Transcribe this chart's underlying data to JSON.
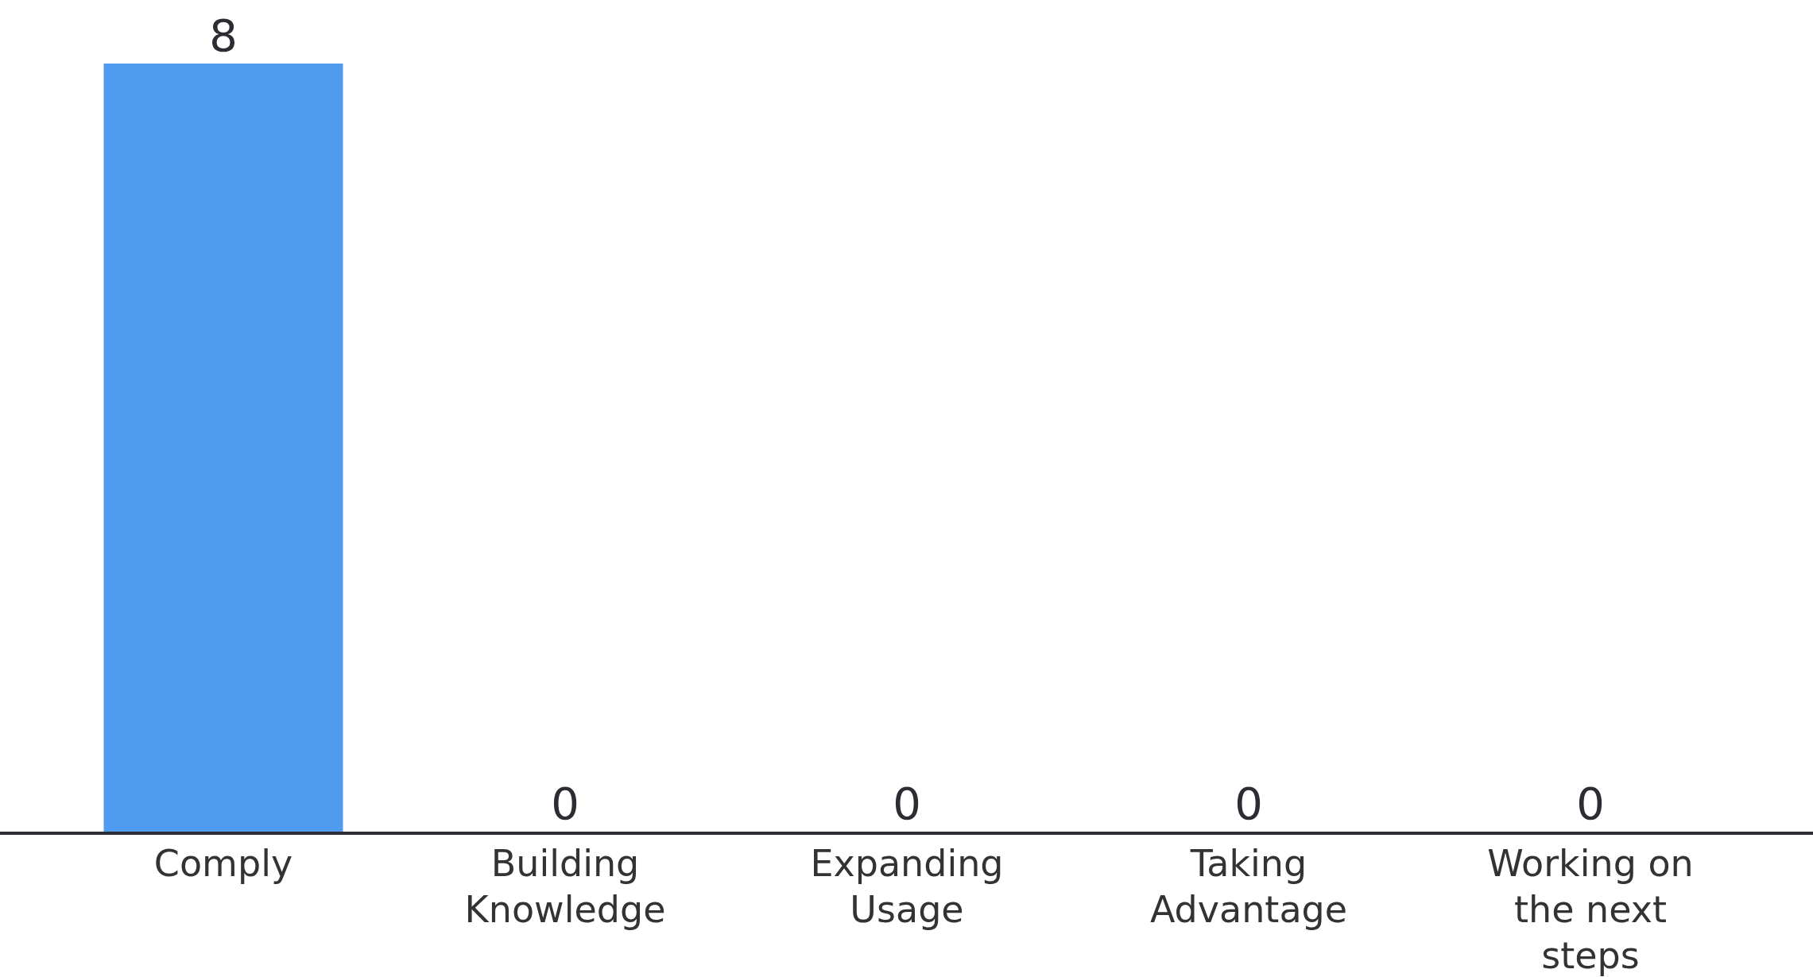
{
  "chart_data": {
    "type": "bar",
    "categories": [
      "Comply",
      "Building Knowledge",
      "Expanding Usage",
      "Taking Advantage",
      "Working on the next steps"
    ],
    "values": [
      8,
      0,
      0,
      0,
      0
    ],
    "color": "#4f9bef",
    "data_labels": true
  }
}
